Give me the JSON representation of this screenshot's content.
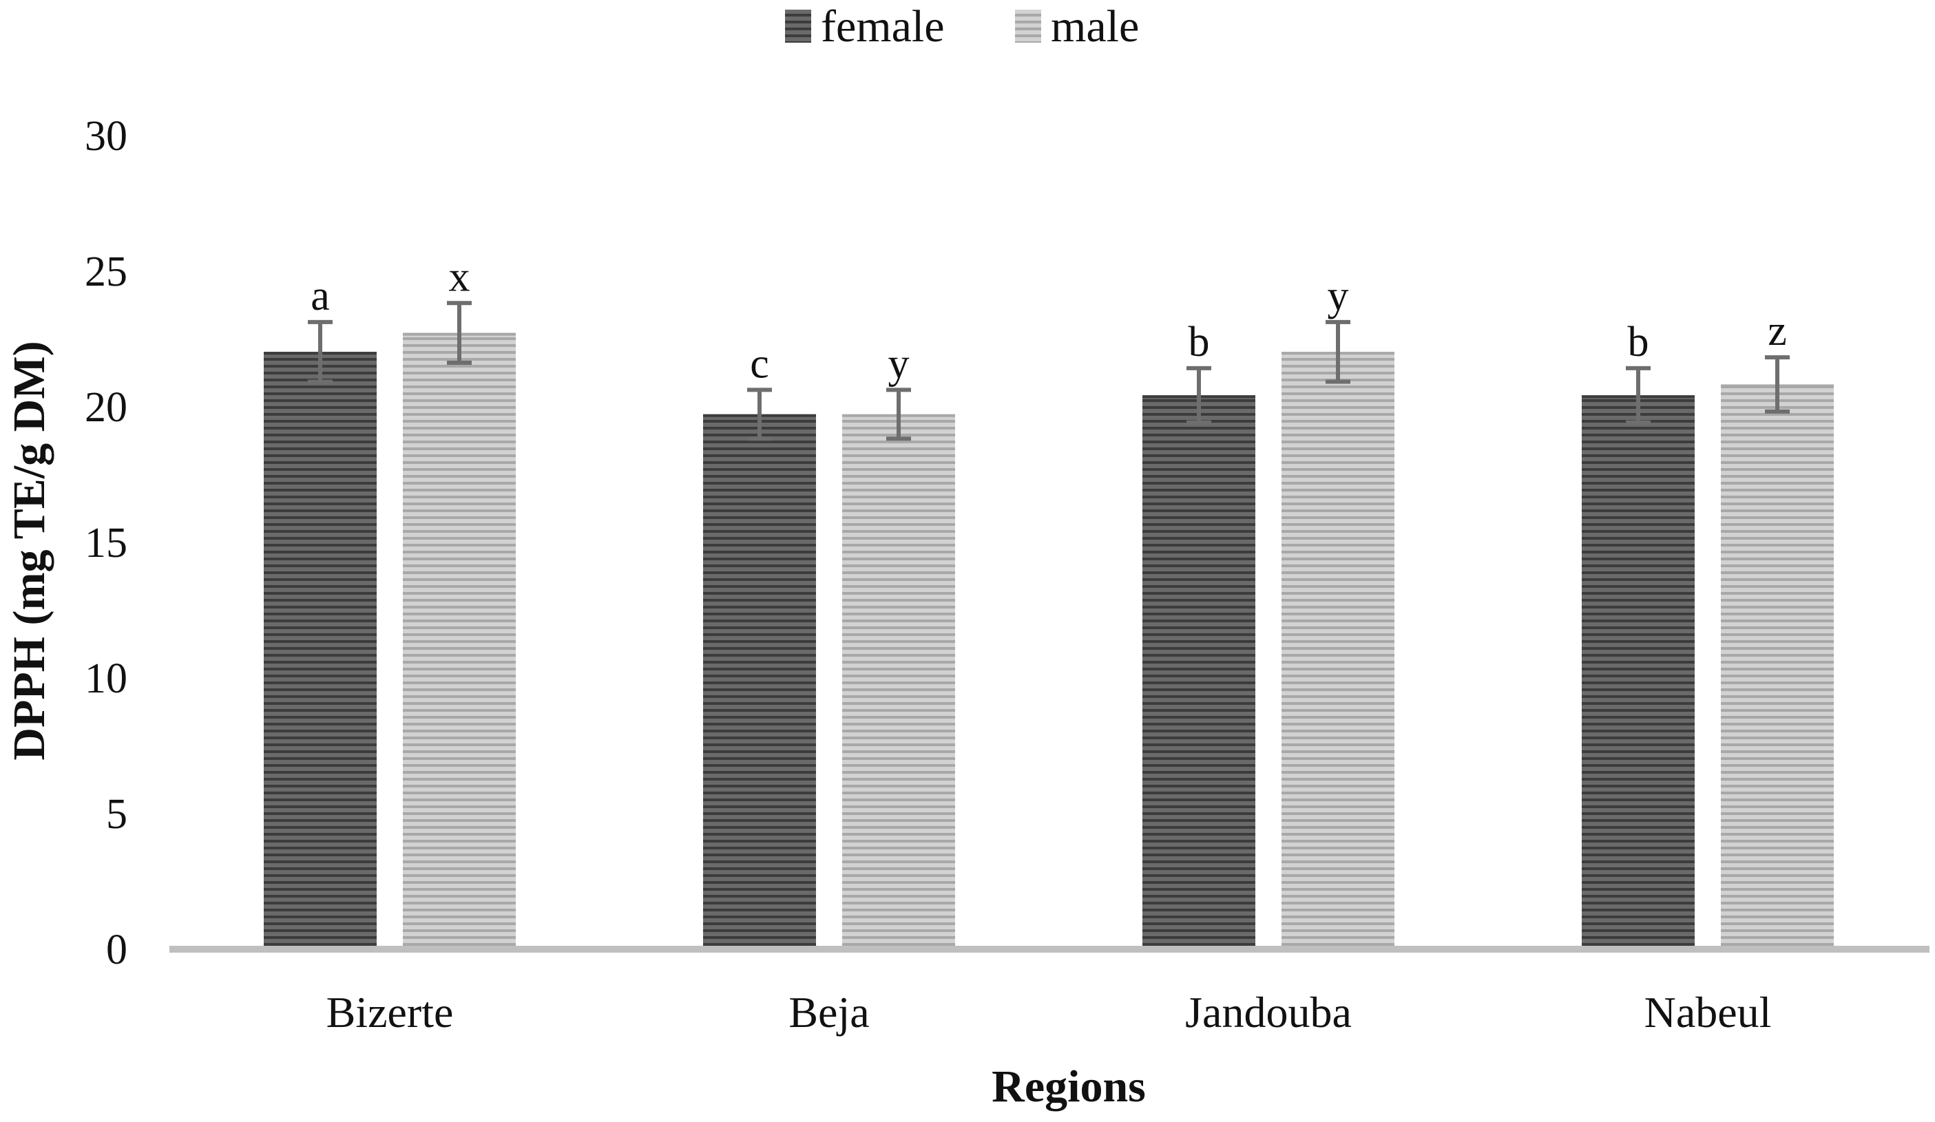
{
  "chart_data": {
    "type": "bar",
    "title": "",
    "xlabel": "Regions",
    "ylabel": "DPPH (mg TE/g DM)",
    "ylim": [
      0,
      30
    ],
    "yticks": [
      "0",
      "5",
      "10",
      "15",
      "20",
      "25",
      "30"
    ],
    "categories": [
      "Bizerte",
      "Beja",
      "Jandouba",
      "Nabeul"
    ],
    "legend_position": "top-center",
    "grid": false,
    "series": [
      {
        "name": "female",
        "color": "#595959",
        "values": [
          22.0,
          19.7,
          20.4,
          20.4
        ],
        "errors": [
          1.1,
          0.9,
          1.0,
          1.0
        ],
        "labels": [
          "a",
          "c",
          "b",
          "b"
        ]
      },
      {
        "name": "male",
        "color": "#bdbdbd",
        "values": [
          22.7,
          19.7,
          22.0,
          20.8
        ],
        "errors": [
          1.1,
          0.9,
          1.1,
          1.0
        ],
        "labels": [
          "x",
          "y",
          "y",
          "z"
        ]
      }
    ]
  }
}
